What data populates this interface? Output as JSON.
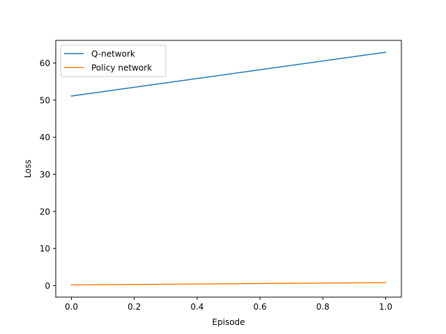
{
  "chart_data": {
    "type": "line",
    "title": "",
    "xlabel": "Episode",
    "ylabel": "Loss",
    "xlim": [
      -0.05,
      1.05
    ],
    "ylim": [
      -3.1,
      66.1
    ],
    "xticks": [
      0.0,
      0.2,
      0.4,
      0.6,
      0.8,
      1.0
    ],
    "xtick_labels": [
      "0.0",
      "0.2",
      "0.4",
      "0.6",
      "0.8",
      "1.0"
    ],
    "yticks": [
      0,
      10,
      20,
      30,
      40,
      50,
      60
    ],
    "ytick_labels": [
      "0",
      "10",
      "20",
      "30",
      "40",
      "50",
      "60"
    ],
    "grid": false,
    "legend_position": "top-left",
    "series": [
      {
        "name": "Q-network",
        "color": "#1f77b4",
        "x": [
          0.0,
          1.0
        ],
        "y": [
          51.1,
          62.9
        ]
      },
      {
        "name": "Policy network",
        "color": "#ff7f0e",
        "x": [
          0.0,
          1.0
        ],
        "y": [
          0.2,
          0.8
        ]
      }
    ]
  }
}
